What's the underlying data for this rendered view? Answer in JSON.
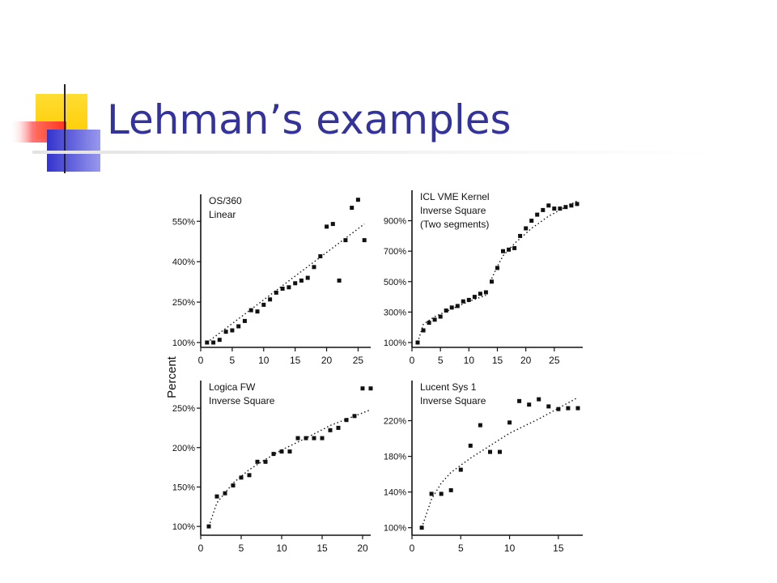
{
  "slide": {
    "title": "Lehman’s examples",
    "accent_colors": {
      "yellow": "#ffcc00",
      "red": "#ff3333",
      "blue": "#3333cc",
      "title": "#333399"
    }
  },
  "figure": {
    "shared_ylabel": "Percent"
  },
  "chart_data": [
    {
      "type": "scatter",
      "annotation": [
        "OS/360",
        "Linear"
      ],
      "xlim": [
        0,
        27
      ],
      "ylim": [
        100,
        650
      ],
      "xticks": [
        0,
        5,
        10,
        15,
        20,
        25
      ],
      "yticks": [
        100,
        250,
        400,
        550
      ],
      "yticklabels": [
        "100%",
        "250%",
        "400%",
        "550%"
      ],
      "points": [
        [
          1,
          100
        ],
        [
          2,
          100
        ],
        [
          3,
          110
        ],
        [
          4,
          140
        ],
        [
          5,
          145
        ],
        [
          6,
          160
        ],
        [
          7,
          180
        ],
        [
          8,
          220
        ],
        [
          9,
          215
        ],
        [
          10,
          240
        ],
        [
          11,
          260
        ],
        [
          12,
          285
        ],
        [
          13,
          300
        ],
        [
          14,
          305
        ],
        [
          15,
          320
        ],
        [
          16,
          330
        ],
        [
          17,
          340
        ],
        [
          18,
          380
        ],
        [
          19,
          420
        ],
        [
          20,
          530
        ],
        [
          21,
          540
        ],
        [
          22,
          330
        ],
        [
          23,
          480
        ],
        [
          24,
          600
        ],
        [
          25,
          630
        ],
        [
          26,
          480
        ]
      ],
      "fit": {
        "style": "dotted",
        "x": [
          1,
          26
        ],
        "y": [
          100,
          540
        ]
      }
    },
    {
      "type": "scatter",
      "annotation": [
        "ICL VME Kernel",
        "Inverse Square",
        "(Two segments)"
      ],
      "xlim": [
        0,
        30
      ],
      "ylim": [
        100,
        1100
      ],
      "xticks": [
        0,
        5,
        10,
        15,
        20,
        25
      ],
      "yticks": [
        100,
        300,
        500,
        700,
        900
      ],
      "yticklabels": [
        "100%",
        "300%",
        "500%",
        "700%",
        "900%"
      ],
      "points": [
        [
          1,
          100
        ],
        [
          2,
          180
        ],
        [
          3,
          230
        ],
        [
          4,
          250
        ],
        [
          5,
          270
        ],
        [
          6,
          310
        ],
        [
          7,
          330
        ],
        [
          8,
          340
        ],
        [
          9,
          370
        ],
        [
          10,
          380
        ],
        [
          11,
          400
        ],
        [
          12,
          420
        ],
        [
          13,
          430
        ],
        [
          14,
          500
        ],
        [
          15,
          590
        ],
        [
          16,
          700
        ],
        [
          17,
          710
        ],
        [
          18,
          720
        ],
        [
          19,
          800
        ],
        [
          20,
          850
        ],
        [
          21,
          900
        ],
        [
          22,
          940
        ],
        [
          23,
          970
        ],
        [
          24,
          1000
        ],
        [
          25,
          980
        ],
        [
          26,
          980
        ],
        [
          27,
          990
        ],
        [
          28,
          1000
        ],
        [
          29,
          1010
        ]
      ],
      "fit": {
        "style": "dotted",
        "segments": [
          {
            "x": [
              1,
              2,
              4,
              7,
              10,
              13
            ],
            "y": [
              100,
              220,
              270,
              320,
              370,
              410
            ]
          },
          {
            "x": [
              14,
              15,
              16,
              18,
              21,
              24,
              27,
              29
            ],
            "y": [
              520,
              600,
              670,
              750,
              850,
              930,
              990,
              1030
            ]
          }
        ]
      }
    },
    {
      "type": "scatter",
      "annotation": [
        "Logica FW",
        "Inverse Square"
      ],
      "xlim": [
        0,
        21
      ],
      "ylim": [
        95,
        285
      ],
      "xticks": [
        0,
        5,
        10,
        15,
        20
      ],
      "yticks": [
        100,
        150,
        200,
        250
      ],
      "yticklabels": [
        "100%",
        "150%",
        "200%",
        "250%"
      ],
      "points": [
        [
          1,
          100
        ],
        [
          2,
          138
        ],
        [
          3,
          142
        ],
        [
          4,
          152
        ],
        [
          5,
          162
        ],
        [
          6,
          165
        ],
        [
          7,
          182
        ],
        [
          8,
          182
        ],
        [
          9,
          192
        ],
        [
          10,
          195
        ],
        [
          11,
          195
        ],
        [
          12,
          212
        ],
        [
          13,
          212
        ],
        [
          14,
          212
        ],
        [
          15,
          212
        ],
        [
          16,
          222
        ],
        [
          17,
          225
        ],
        [
          18,
          235
        ],
        [
          19,
          240
        ],
        [
          20,
          275
        ],
        [
          21,
          275
        ]
      ],
      "fit": {
        "style": "dotted",
        "x": [
          1,
          2,
          4,
          6,
          8,
          10,
          13,
          16,
          19,
          21
        ],
        "y": [
          100,
          130,
          155,
          172,
          185,
          197,
          212,
          228,
          240,
          248
        ]
      }
    },
    {
      "type": "scatter",
      "annotation": [
        "Lucent Sys 1",
        "Inverse Square"
      ],
      "xlim": [
        0,
        17.5
      ],
      "ylim": [
        97,
        265
      ],
      "xticks": [
        0,
        5,
        10,
        15
      ],
      "yticks": [
        100,
        140,
        180,
        220
      ],
      "yticklabels": [
        "100%",
        "140%",
        "180%",
        "220%"
      ],
      "points": [
        [
          1,
          100
        ],
        [
          2,
          138
        ],
        [
          3,
          138
        ],
        [
          4,
          142
        ],
        [
          5,
          165
        ],
        [
          6,
          192
        ],
        [
          7,
          215
        ],
        [
          8,
          185
        ],
        [
          9,
          185
        ],
        [
          10,
          218
        ],
        [
          11,
          242
        ],
        [
          12,
          238
        ],
        [
          13,
          244
        ],
        [
          14,
          236
        ],
        [
          15,
          233
        ],
        [
          16,
          234
        ],
        [
          17,
          234
        ]
      ],
      "fit": {
        "style": "dotted",
        "x": [
          1,
          2,
          3,
          4,
          6,
          8,
          10,
          13,
          17
        ],
        "y": [
          100,
          132,
          150,
          162,
          178,
          192,
          206,
          222,
          246
        ]
      }
    }
  ]
}
